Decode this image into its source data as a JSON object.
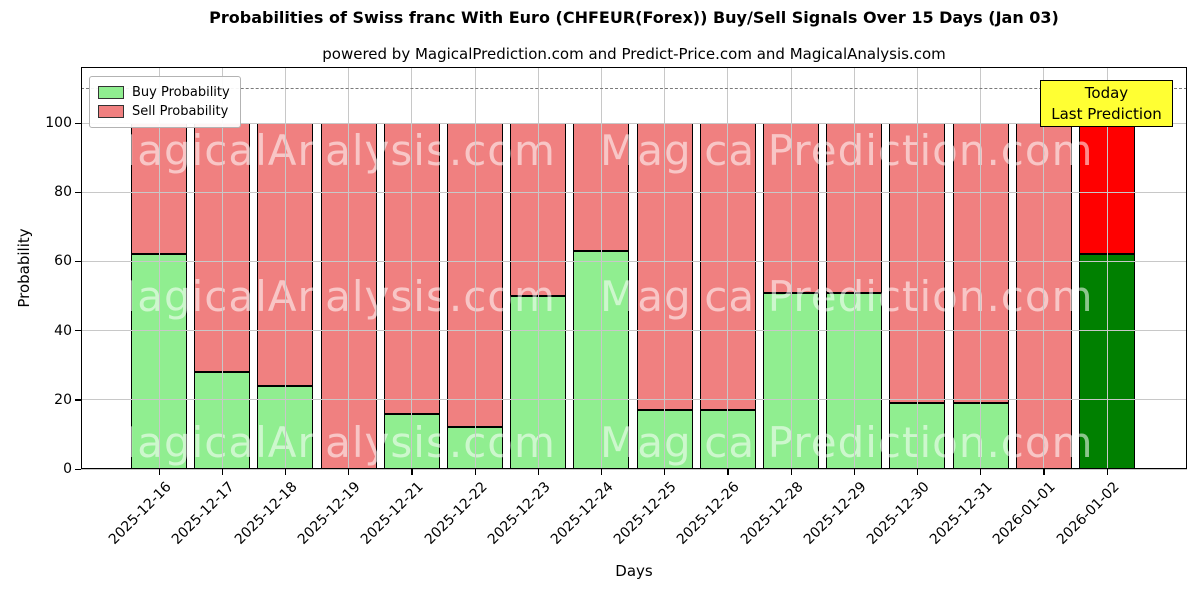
{
  "figure": {
    "title": "Probabilities of Swiss franc With Euro (CHFEUR(Forex)) Buy/Sell Signals Over 15 Days (Jan 03)",
    "subtitle": "powered by MagicalPrediction.com and Predict-Price.com and MagicalAnalysis.com"
  },
  "chart_data": {
    "type": "bar",
    "stacked": true,
    "title": "Probabilities of Swiss franc With Euro (CHFEUR(Forex)) Buy/Sell Signals Over 15 Days (Jan 03)",
    "subtitle": "powered by MagicalPrediction.com and Predict-Price.com and MagicalAnalysis.com",
    "xlabel": "Days",
    "ylabel": "Probability",
    "categories": [
      "2025-12-16",
      "2025-12-17",
      "2025-12-18",
      "2025-12-19",
      "2025-12-21",
      "2025-12-22",
      "2025-12-23",
      "2025-12-24",
      "2025-12-25",
      "2025-12-26",
      "2025-12-28",
      "2025-12-29",
      "2025-12-30",
      "2025-12-31",
      "2026-01-01",
      "2026-01-02"
    ],
    "series": [
      {
        "name": "Buy Probability",
        "color": "#90EE90",
        "values": [
          62,
          28,
          24,
          0,
          16,
          12,
          50,
          63,
          17,
          17,
          51,
          51,
          19,
          19,
          0,
          62
        ]
      },
      {
        "name": "Sell Probability",
        "color": "#F08080",
        "values": [
          38,
          72,
          76,
          100,
          84,
          88,
          50,
          37,
          83,
          83,
          49,
          49,
          81,
          81,
          100,
          38
        ]
      }
    ],
    "highlight_last_bar": {
      "category": "2026-01-02",
      "buy_color": "#008000",
      "sell_color": "#FF0000"
    },
    "bar_edge_color": "#000000",
    "ylim": [
      0,
      116
    ],
    "yticks": [
      0,
      20,
      40,
      60,
      80,
      100
    ],
    "dashed_hline": 110,
    "grid": true,
    "legend_position": "upper left"
  },
  "legend": {
    "items": [
      {
        "label": "Buy Probability",
        "color": "#90EE90"
      },
      {
        "label": "Sell Probability",
        "color": "#F08080"
      }
    ]
  },
  "annotation_box": {
    "line1": "Today",
    "line2": "Last Prediction",
    "bg": "#FFFF33"
  },
  "watermarks": {
    "left_text": "MagicalAnalysis.com",
    "right_text": "MagicalPrediction.com",
    "rows": 3
  }
}
